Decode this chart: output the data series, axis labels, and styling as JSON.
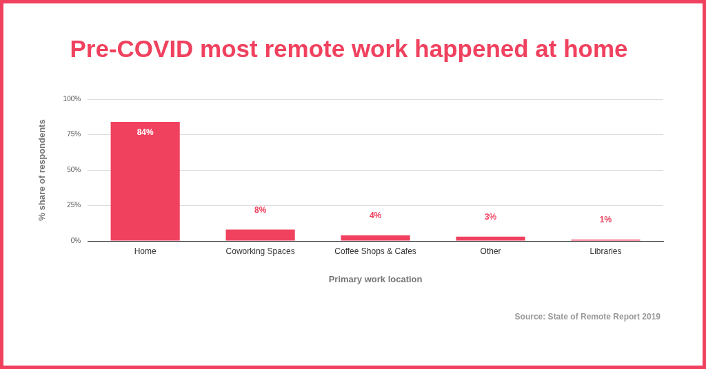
{
  "chart_data": {
    "type": "bar",
    "title": "Pre-COVID most remote work happened at home",
    "xlabel": "Primary work location",
    "ylabel": "% share of respondents",
    "categories": [
      "Home",
      "Coworking Spaces",
      "Coffee Shops & Cafes",
      "Other",
      "Libraries"
    ],
    "values": [
      84,
      8,
      4,
      3,
      1
    ],
    "value_labels": [
      "84%",
      "8%",
      "4%",
      "3%",
      "1%"
    ],
    "color": "#f0415f",
    "ylim": [
      0,
      100
    ],
    "yticks": [
      {
        "value": 0,
        "label": "0%"
      },
      {
        "value": 25,
        "label": "25%"
      },
      {
        "value": 50,
        "label": "50%"
      },
      {
        "value": 75,
        "label": "75%"
      },
      {
        "value": 100,
        "label": "100%"
      }
    ],
    "grid": "y",
    "legend": false,
    "annotations": [
      "Source: State of Remote Report 2019"
    ]
  }
}
